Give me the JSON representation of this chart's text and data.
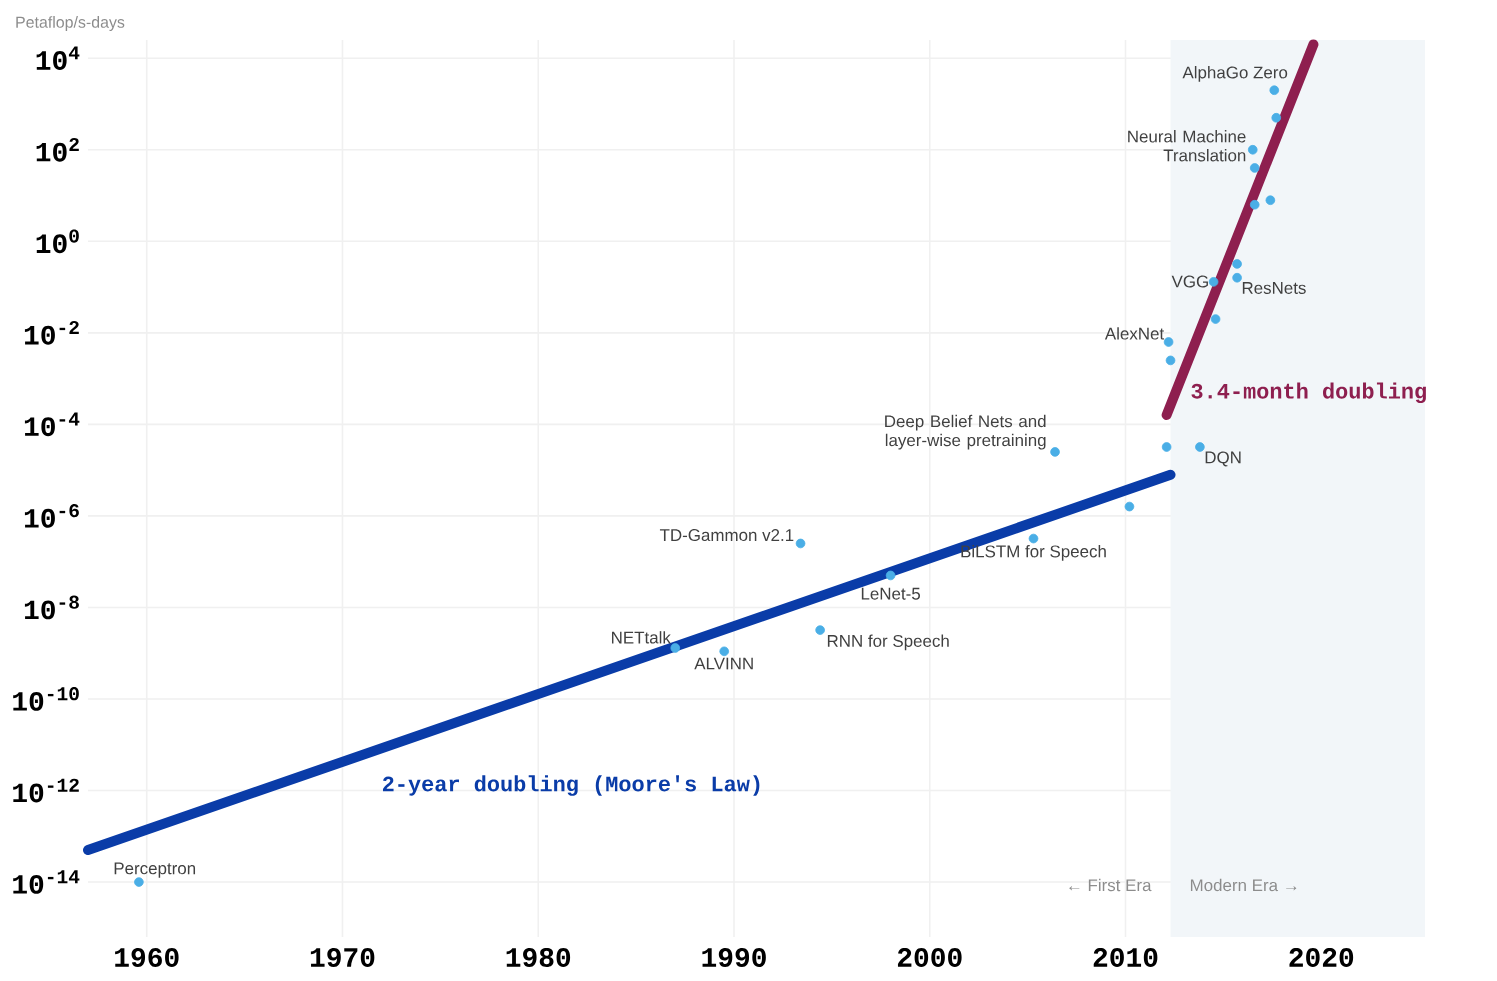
{
  "chart_data": {
    "type": "scatter",
    "ylabel": "Petaflop/s-days",
    "log": "y",
    "grid": true,
    "xlim": [
      1957,
      2025.3
    ],
    "ylim": [
      6.3e-16,
      25000
    ],
    "xticks": [
      1960,
      1970,
      1980,
      1990,
      2000,
      2010,
      2020
    ],
    "yticks": [
      {
        "value": 10000.0,
        "label": "10$^{4}$"
      },
      {
        "value": 100.0,
        "label": "10$^{2}$"
      },
      {
        "value": 1,
        "label": "10$^{0}$"
      },
      {
        "value": 0.01,
        "label": "10$^{-2}$"
      },
      {
        "value": 0.0001,
        "label": "10$^{-4}$"
      },
      {
        "value": 1e-06,
        "label": "10$^{-6}$"
      },
      {
        "value": 1e-08,
        "label": "10$^{-8}$"
      },
      {
        "value": 1e-10,
        "label": "10$^{-10}$"
      },
      {
        "value": 1e-12,
        "label": "10$^{-12}$"
      },
      {
        "value": 1e-14,
        "label": "10$^{-14}$"
      }
    ],
    "bands": [
      {
        "axis": "x",
        "from": 2012.3,
        "to": 2025.3,
        "color": "#f2f6f9"
      }
    ],
    "series": [
      {
        "type": "line",
        "name": "2-year doubling (Moore's Law)",
        "color": "#0a3ca8",
        "marker": "none",
        "x": [
          1957.0,
          2012.3
        ],
        "values": [
          5e-14,
          7.9e-06
        ]
      },
      {
        "type": "line",
        "name": "3.4-month doubling",
        "color": "#8e1f4f",
        "marker": "none",
        "x": [
          2012.1,
          2019.6
        ],
        "values": [
          0.00016,
          20000.0
        ]
      },
      {
        "marker": "circle",
        "color": "#4aaee6",
        "x": [
          1959.6,
          1987.0,
          1989.5,
          1993.4,
          1994.4,
          1998.0,
          2005.3,
          2006.4,
          2010.2,
          2012.1,
          2013.8,
          2012.2,
          2012.3,
          2014.6,
          2014.5,
          2015.7,
          2015.7,
          2016.6,
          2017.4,
          2016.6,
          2016.5,
          2017.7,
          2017.6
        ],
        "values": [
          1e-14,
          1.3e-09,
          1.1e-09,
          2.5e-07,
          3.2e-09,
          5e-08,
          3.2e-07,
          2.5e-05,
          1.6e-06,
          3.2e-05,
          3.2e-05,
          0.0063,
          0.0025,
          0.02,
          0.13,
          0.32,
          0.16,
          6.3,
          7.9,
          40,
          100,
          500,
          2000
        ]
      }
    ],
    "annotations": [
      {
        "text": "Perceptron",
        "x": 1959.6,
        "y": 1e-14
      },
      {
        "text": "NETtalk",
        "x": 1987.0,
        "y": 1.3e-09
      },
      {
        "text": "ALVINN",
        "x": 1989.5,
        "y": 1.1e-09
      },
      {
        "text": "TD-Gammon v2.1",
        "x": 1993.4,
        "y": 2.5e-07
      },
      {
        "text": "RNN for Speech",
        "x": 1994.4,
        "y": 3.2e-09
      },
      {
        "text": "LeNet-5",
        "x": 1998.0,
        "y": 5e-08
      },
      {
        "text": "BiLSTM for Speech",
        "x": 2005.3,
        "y": 3.2e-07
      },
      {
        "text": "Deep Belief Nets and layer-wise pretraining",
        "x": 2006.4,
        "y": 2.5e-05
      },
      {
        "text": "DQN",
        "x": 2013.8,
        "y": 3.2e-05
      },
      {
        "text": "AlexNet",
        "x": 2012.2,
        "y": 0.0063
      },
      {
        "text": "VGG",
        "x": 2014.5,
        "y": 0.13
      },
      {
        "text": "ResNets",
        "x": 2015.7,
        "y": 0.16
      },
      {
        "text": "Neural Machine Translation",
        "x": 2016.5,
        "y": 100
      },
      {
        "text": "AlphaGo Zero",
        "x": 2017.6,
        "y": 2000
      },
      "← First Era",
      "Modern Era →"
    ]
  }
}
